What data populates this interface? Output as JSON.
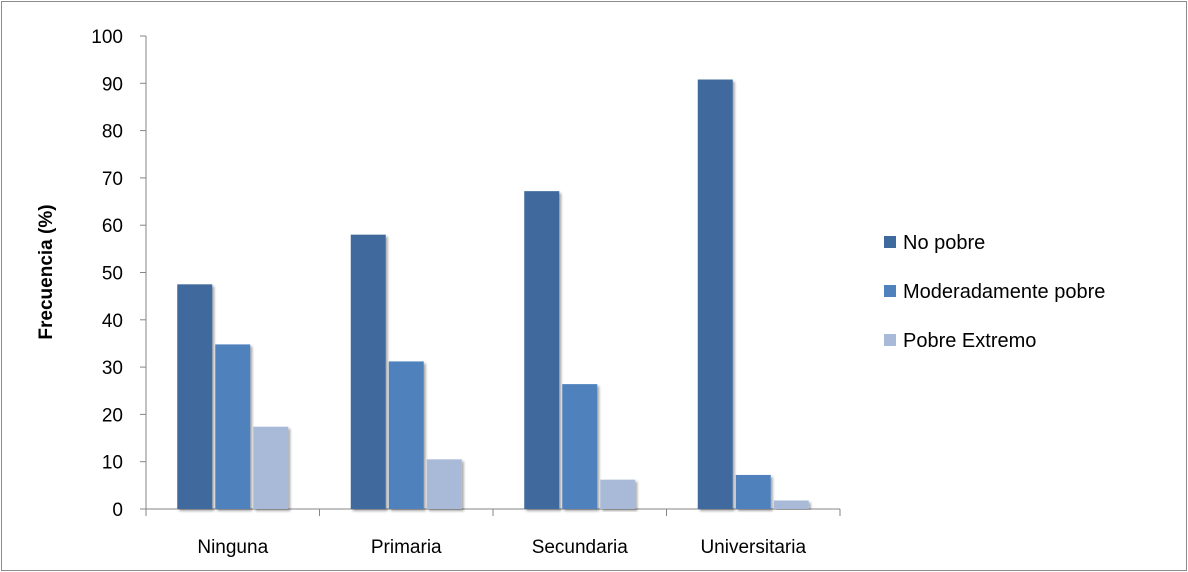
{
  "chart_data": {
    "type": "bar",
    "title": "",
    "xlabel": "",
    "ylabel": "Frecuencia (%)",
    "ylim": [
      0,
      100
    ],
    "yticks": [
      0,
      10,
      20,
      30,
      40,
      50,
      60,
      70,
      80,
      90,
      100
    ],
    "categories": [
      "Ninguna",
      "Primaria",
      "Secundaria",
      "Universitaria"
    ],
    "series": [
      {
        "name": "No pobre",
        "color": "#3f6a9e",
        "values": [
          47.5,
          58.0,
          67.2,
          90.8
        ]
      },
      {
        "name": "Moderadamente pobre",
        "color": "#4f81bd",
        "values": [
          34.8,
          31.2,
          26.4,
          7.2
        ]
      },
      {
        "name": "Pobre Extremo",
        "color": "#a9bad8",
        "values": [
          17.4,
          10.5,
          6.2,
          1.8
        ]
      }
    ],
    "grid": false,
    "legend": "right"
  }
}
